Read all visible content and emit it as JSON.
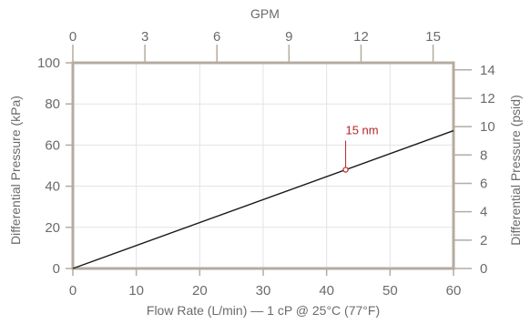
{
  "chart_data": {
    "type": "line",
    "title": "",
    "xlabel": "Flow Rate (L/min) — 1 cP @ 25°C (77°F)",
    "ylabel": "Differential Pressure (kPa)",
    "x2label": "GPM",
    "y2label": "Differential Pressure (psid)",
    "xlim": [
      0,
      60
    ],
    "ylim": [
      0,
      100
    ],
    "x2lim": [
      0,
      15.85
    ],
    "y2lim": [
      0,
      14.5
    ],
    "x_ticks": [
      0,
      10,
      20,
      30,
      40,
      50,
      60
    ],
    "y_ticks": [
      0,
      20,
      40,
      60,
      80,
      100
    ],
    "x2_ticks": [
      0,
      3,
      6,
      9,
      12,
      15
    ],
    "y2_ticks": [
      0,
      2,
      4,
      6,
      8,
      10,
      12,
      14
    ],
    "grid": true,
    "series": [
      {
        "name": "15 nm",
        "x": [
          0,
          60
        ],
        "y": [
          0,
          67
        ]
      }
    ],
    "annotations": [
      {
        "text": "15 nm",
        "x": 43,
        "y": 48
      }
    ],
    "colors": {
      "axis": "#b5aba1",
      "grid": "#e3e3e3",
      "line": "#1a1a1a",
      "accent": "#b5252a",
      "text": "#6b6b6b"
    }
  }
}
